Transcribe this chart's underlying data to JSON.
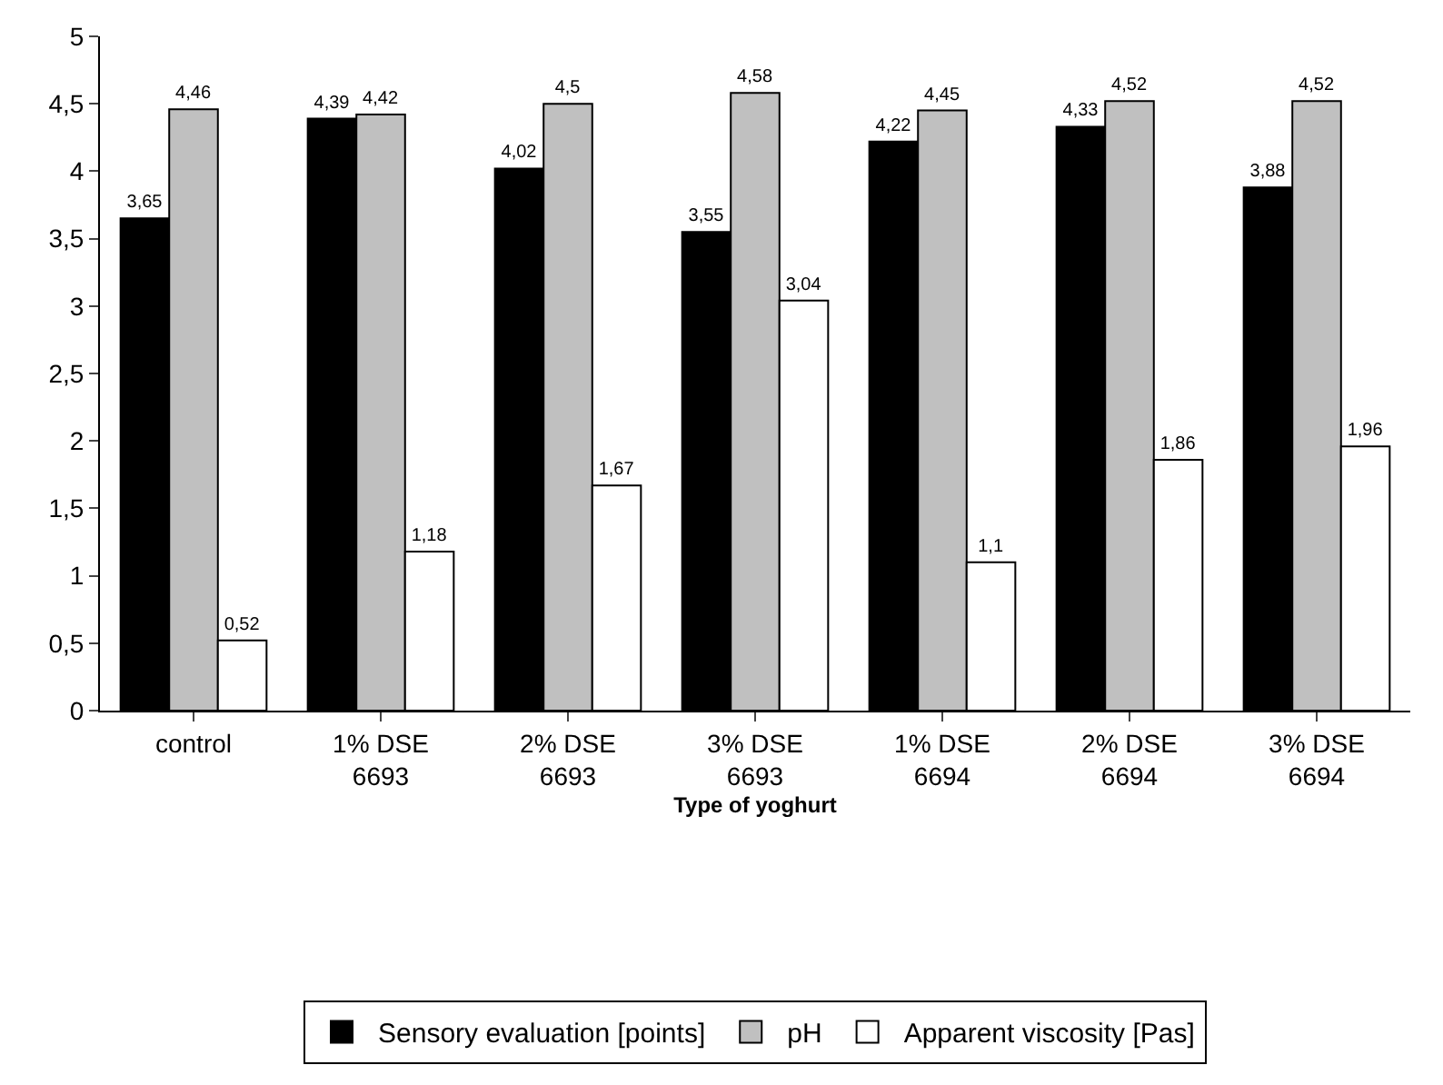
{
  "chart_data": {
    "type": "bar",
    "xlabel": "Type of yoghurt",
    "categories": [
      "control",
      "1% DSE 6693",
      "2% DSE 6693",
      "3% DSE 6693",
      "1% DSE 6694",
      "2% DSE 6694",
      "3% DSE 6694"
    ],
    "series": [
      {
        "name": "Sensory evaluation [points]",
        "color": "#000000",
        "values": [
          3.65,
          4.39,
          4.02,
          3.55,
          4.22,
          4.33,
          3.88
        ],
        "value_labels": [
          "3,65",
          "4,39",
          "4,02",
          "3,55",
          "4,22",
          "4,33",
          "3,88"
        ]
      },
      {
        "name": "pH",
        "color": "#c0c0c0",
        "values": [
          4.46,
          4.42,
          4.5,
          4.58,
          4.45,
          4.52,
          4.52
        ],
        "value_labels": [
          "4,46",
          "4,42",
          "4,5",
          "4,58",
          "4,45",
          "4,52",
          "4,52"
        ]
      },
      {
        "name": "Apparent viscosity [Pas]",
        "color": "#ffffff",
        "values": [
          0.52,
          1.18,
          1.67,
          3.04,
          1.1,
          1.86,
          1.96
        ],
        "value_labels": [
          "0,52",
          "1,18",
          "1,67",
          "3,04",
          "1,1",
          "1,86",
          "1,96"
        ]
      }
    ],
    "ylim": [
      0,
      5
    ],
    "yticks": [
      0,
      {
        "value": 0.5,
        "label": "0,5"
      },
      1,
      {
        "value": 1.5,
        "label": "1,5"
      },
      2,
      {
        "value": 2.5,
        "label": "2,5"
      },
      3,
      {
        "value": 3.5,
        "label": "3,5"
      },
      4,
      {
        "value": 4.5,
        "label": "4,5"
      },
      5
    ],
    "legend": "bottom"
  }
}
